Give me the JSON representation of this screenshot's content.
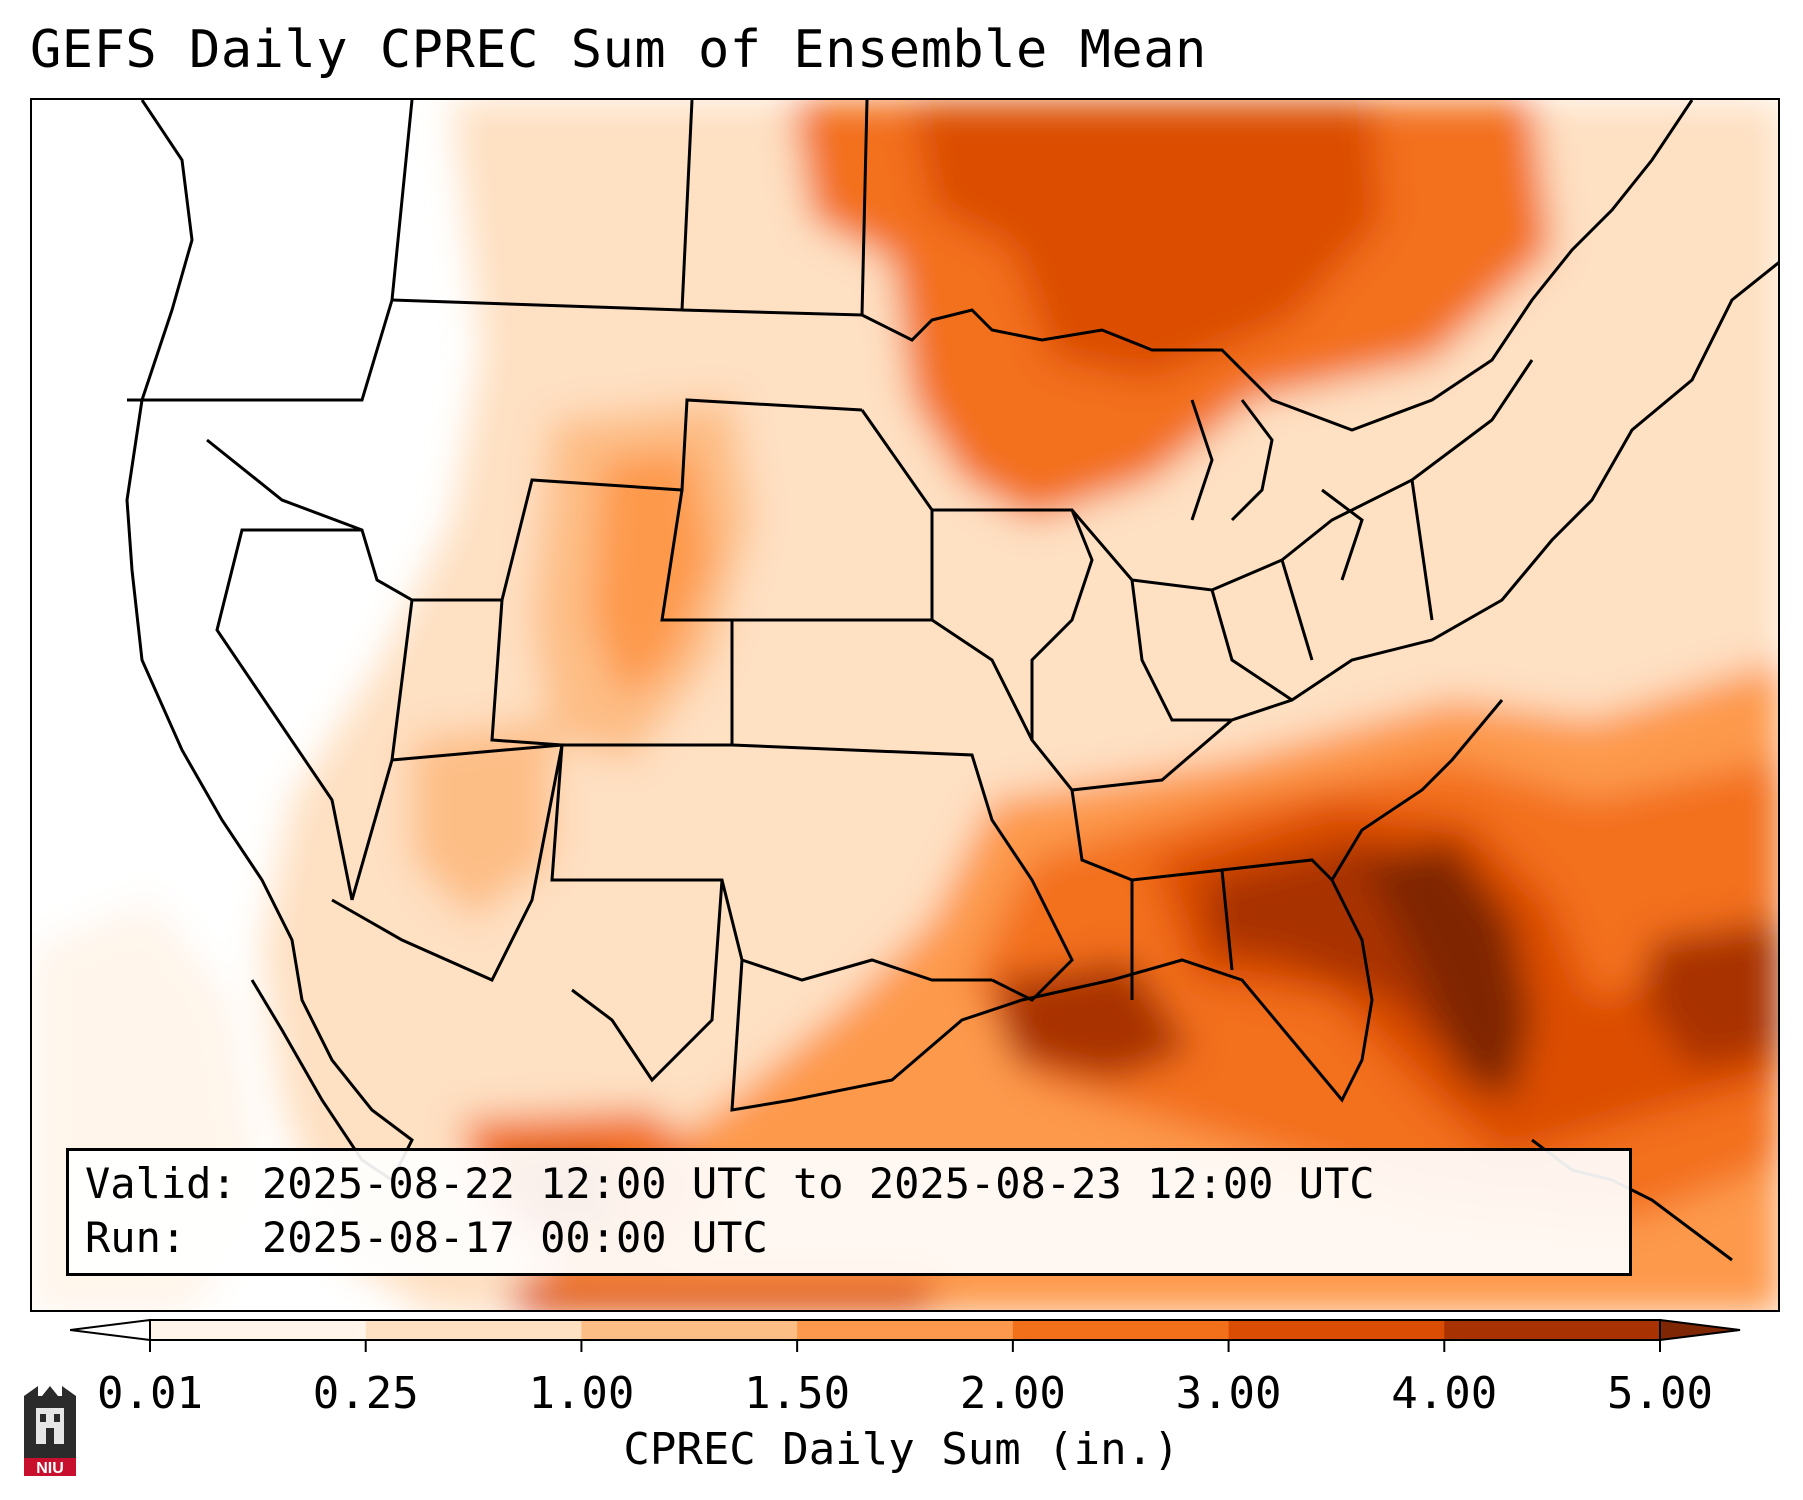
{
  "title": "GEFS Daily CPREC Sum of Ensemble Mean",
  "info": {
    "valid_line": "Valid: 2025-08-22 12:00 UTC to 2025-08-23 12:00 UTC",
    "run_line": "Run:   2025-08-17 00:00 UTC"
  },
  "colorbar": {
    "label": "CPREC Daily Sum (in.)",
    "ticks": [
      "0.01",
      "0.25",
      "1.00",
      "1.50",
      "2.00",
      "3.00",
      "4.00",
      "5.00"
    ],
    "colors": [
      "#fff5eb",
      "#fee0c2",
      "#fdbe86",
      "#fd994c",
      "#f3701b",
      "#dc4d04",
      "#a83202"
    ],
    "under_color": "#ffffff",
    "over_color": "#7f2704",
    "extend": "both"
  },
  "logo": {
    "text": "NIU",
    "color": "#c8102e"
  }
}
